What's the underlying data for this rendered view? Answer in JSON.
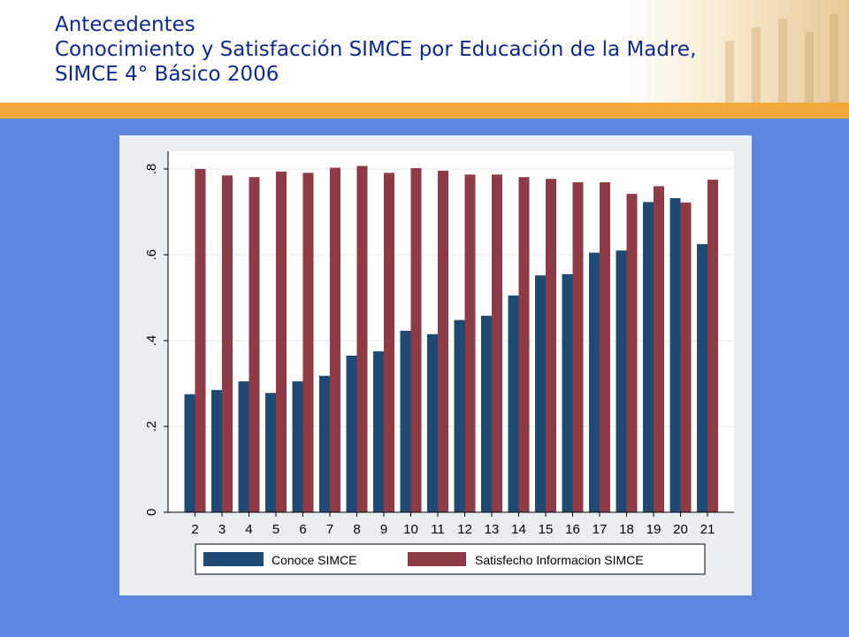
{
  "header": {
    "title_line1": "Antecedentes",
    "title_line2": "Conocimiento y Satisfacción SIMCE por Educación de la Madre,",
    "title_line3": "SIMCE 4° Básico 2006"
  },
  "colors": {
    "background": "#5b87e0",
    "accent_bar": "#f2a93a",
    "title": "#0e2a8c",
    "series_conoce": "#1f4a74",
    "series_satisfecho": "#8e3b46"
  },
  "chart_data": {
    "type": "bar",
    "categories": [
      "2",
      "3",
      "4",
      "5",
      "6",
      "7",
      "8",
      "9",
      "10",
      "11",
      "12",
      "13",
      "14",
      "15",
      "16",
      "17",
      "18",
      "19",
      "20",
      "21"
    ],
    "series": [
      {
        "name": "Conoce SIMCE",
        "color": "#1f4a74",
        "values": [
          0.275,
          0.285,
          0.305,
          0.278,
          0.305,
          0.318,
          0.365,
          0.375,
          0.423,
          0.415,
          0.448,
          0.458,
          0.505,
          0.552,
          0.555,
          0.605,
          0.61,
          0.723,
          0.732,
          0.625
        ]
      },
      {
        "name": "Satisfecho Informacion SIMCE",
        "color": "#8e3b46",
        "values": [
          0.8,
          0.785,
          0.781,
          0.794,
          0.791,
          0.803,
          0.807,
          0.791,
          0.802,
          0.796,
          0.787,
          0.787,
          0.781,
          0.777,
          0.769,
          0.769,
          0.742,
          0.76,
          0.722,
          0.775
        ]
      }
    ],
    "yticks": [
      0,
      0.2,
      0.4,
      0.6,
      0.8
    ],
    "ytick_labels": [
      "0",
      ".2",
      ".4",
      ".6",
      ".8"
    ],
    "ylim": [
      0,
      0.84
    ],
    "grid": true,
    "legend_position": "bottom"
  }
}
